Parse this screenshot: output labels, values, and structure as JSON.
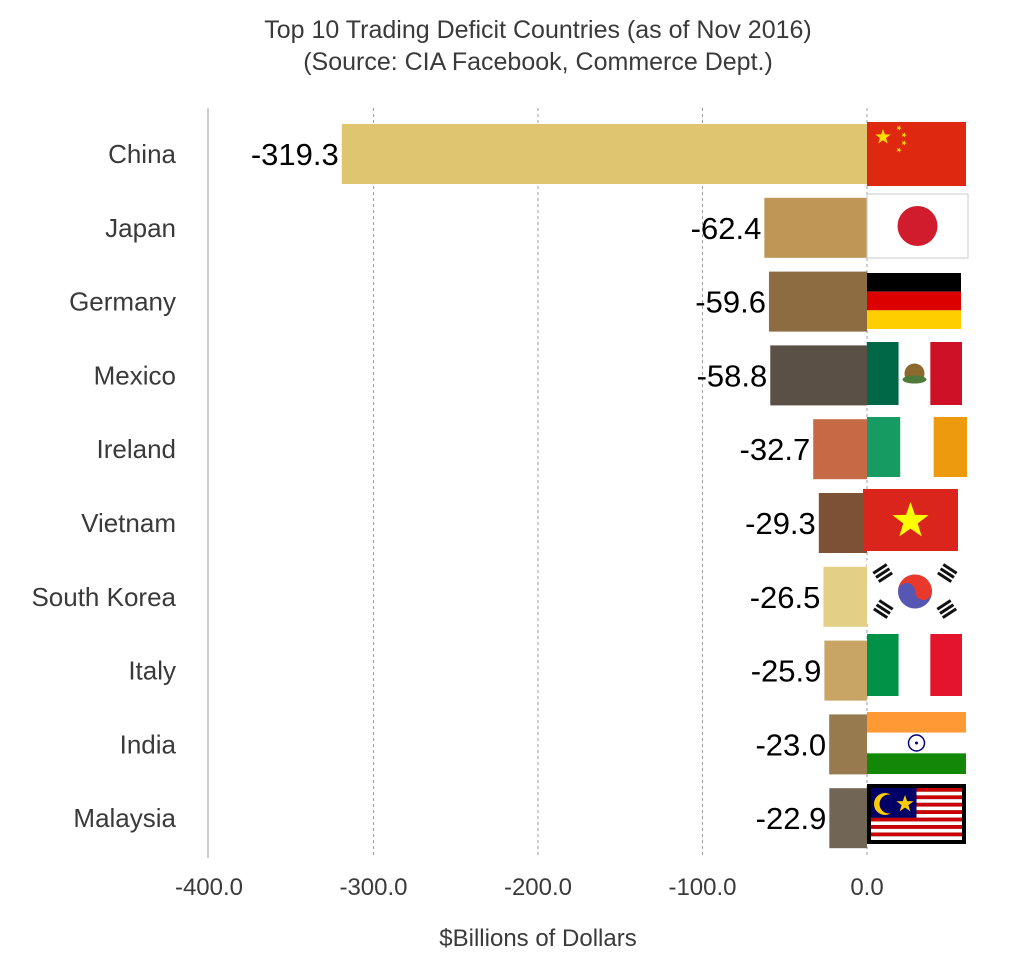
{
  "chart_data": {
    "type": "bar",
    "orientation": "horizontal",
    "title": "Top 10 Trading Deficit Countries (as of Nov 2016)",
    "subtitle": "(Source: CIA Facebook, Commerce Dept.)",
    "xlabel": "$Billions of Dollars",
    "ylabel": "",
    "xlim": [
      -400,
      0
    ],
    "xticks": [
      -400,
      -300,
      -200,
      -100,
      0
    ],
    "xtick_labels": [
      "-400.0",
      "-300.0",
      "-200.0",
      "-100.0",
      "0.0"
    ],
    "grid": "vertical dashed",
    "categories": [
      "China",
      "Japan",
      "Germany",
      "Mexico",
      "Ireland",
      "Vietnam",
      "South Korea",
      "Italy",
      "India",
      "Malaysia"
    ],
    "values": [
      -319.3,
      -62.4,
      -59.6,
      -58.8,
      -32.7,
      -29.3,
      -26.5,
      -25.9,
      -23.0,
      -22.9
    ],
    "value_labels": [
      "-319.3",
      "-62.4",
      "-59.6",
      "-58.8",
      "-32.7",
      "-29.3",
      "-26.5",
      "-25.9",
      "-23.0",
      "-22.9"
    ],
    "bar_colors": [
      "#dfc570",
      "#c09656",
      "#8d6c42",
      "#5b5045",
      "#c66a45",
      "#7d5135",
      "#e4cf86",
      "#c8a465",
      "#977b4f",
      "#716656"
    ],
    "flags": [
      "china-flag-icon",
      "japan-flag-icon",
      "germany-flag-icon",
      "mexico-flag-icon",
      "ireland-flag-icon",
      "vietnam-flag-icon",
      "south-korea-flag-icon",
      "italy-flag-icon",
      "india-flag-icon",
      "malaysia-flag-icon"
    ]
  }
}
